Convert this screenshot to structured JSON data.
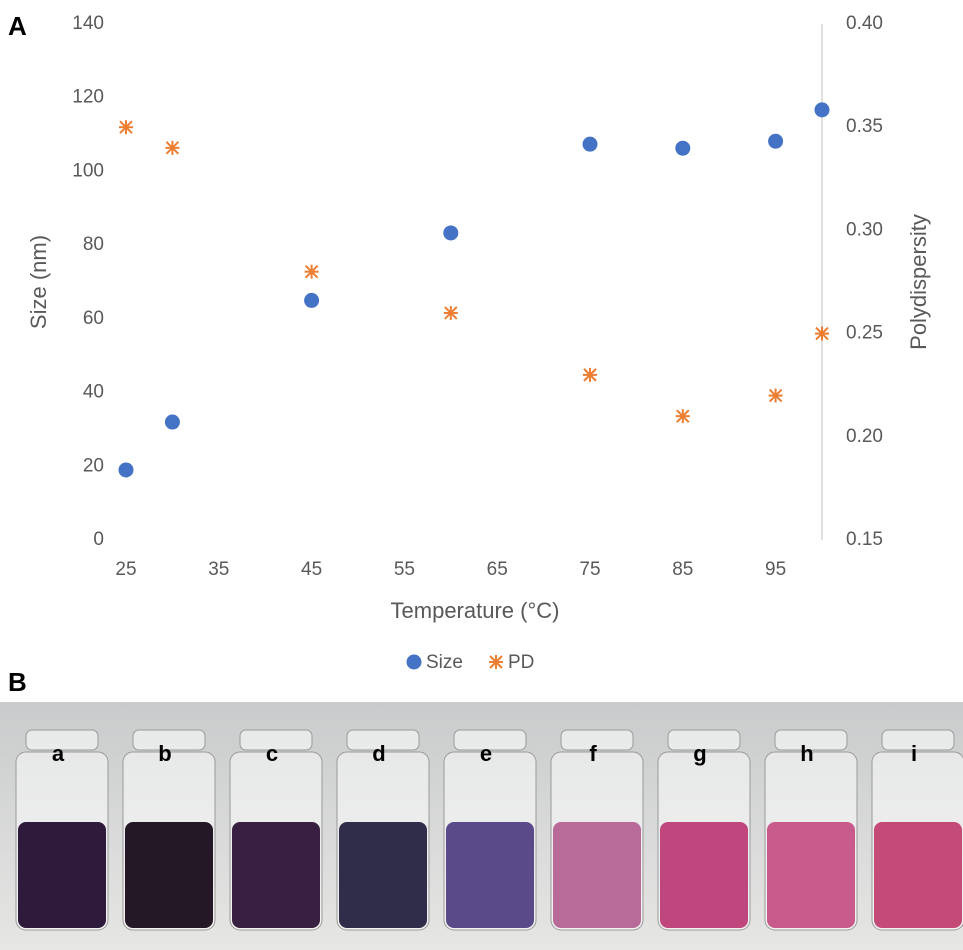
{
  "chart_data": {
    "type": "scatter",
    "panel_label": "A",
    "x_label": "Temperature (°C)",
    "y_label": "Size (nm)",
    "y2_label": "Polydispersity",
    "x": [
      25,
      30,
      45,
      60,
      75,
      85,
      95,
      100
    ],
    "series": [
      {
        "name": "Size",
        "color": "#4472c4",
        "marker": "circle",
        "values": [
          19,
          32,
          65,
          83.3,
          107.4,
          106.3,
          108.2,
          116.7
        ]
      },
      {
        "name": "PD",
        "color": "#ed7d31",
        "marker": "star",
        "axis": "y2",
        "values": [
          0.35,
          0.34,
          0.28,
          0.26,
          0.23,
          0.21,
          0.22,
          0.25
        ]
      }
    ],
    "xlim": [
      25,
      100
    ],
    "xticks": [
      25,
      35,
      45,
      55,
      65,
      75,
      85,
      95
    ],
    "ylim": [
      0,
      140
    ],
    "yticks": [
      0,
      20,
      40,
      60,
      80,
      100,
      120,
      140
    ],
    "y2lim": [
      0.15,
      0.4
    ],
    "y2ticks": [
      0.15,
      {
        "value": 0.2,
        "label": "0.20"
      },
      0.25,
      {
        "value": 0.3,
        "label": "0.30"
      },
      0.35,
      {
        "value": 0.4,
        "label": "0.40"
      }
    ],
    "grid": false,
    "legend": "bottom"
  },
  "photo": {
    "panel_label": "B",
    "vials": [
      {
        "label": "a",
        "color": "#2e1a3a"
      },
      {
        "label": "b",
        "color": "#241826"
      },
      {
        "label": "c",
        "color": "#3a2040"
      },
      {
        "label": "d",
        "color": "#2f2d4a"
      },
      {
        "label": "e",
        "color": "#5b4a8a"
      },
      {
        "label": "f",
        "color": "#b86a98"
      },
      {
        "label": "g",
        "color": "#c0477e"
      },
      {
        "label": "h",
        "color": "#c85a8c"
      },
      {
        "label": "i",
        "color": "#c44a78"
      }
    ]
  }
}
